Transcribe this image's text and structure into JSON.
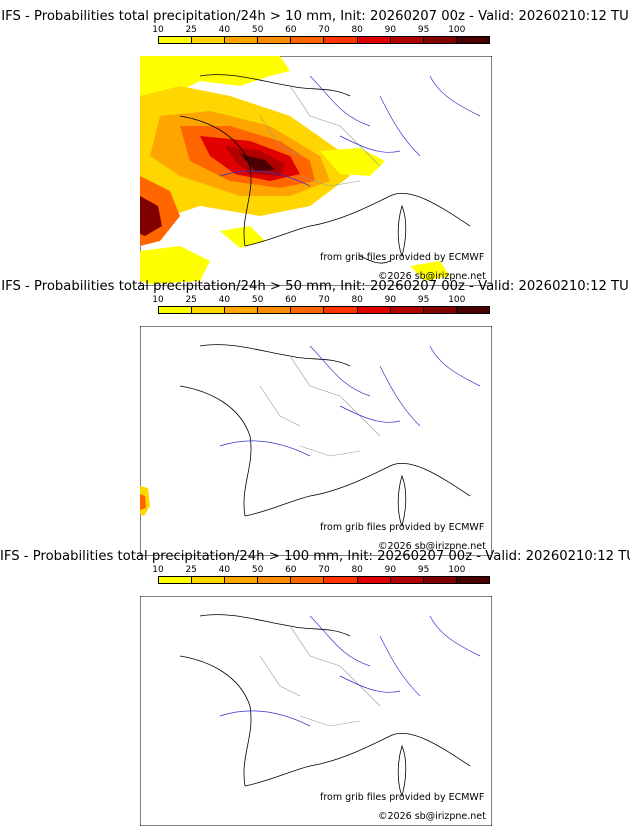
{
  "colorbar": {
    "ticks": [
      "10",
      "25",
      "40",
      "50",
      "60",
      "70",
      "80",
      "90",
      "95",
      "100"
    ],
    "colors": [
      "#ffff00",
      "#ffd700",
      "#ffa500",
      "#ff8c00",
      "#ff6600",
      "#ff3300",
      "#e00000",
      "#b00000",
      "#800000",
      "#4a0000"
    ]
  },
  "panels": [
    {
      "title": "IFS - Probabilities total precipitation/24h > 10 mm, Init: 20260207 00z - Valid: 20260210:12 TU"
    },
    {
      "title": "IFS - Probabilities total precipitation/24h > 50 mm, Init: 20260207 00z - Valid: 20260210:12 TU"
    },
    {
      "title": "IFS - Probabilities total precipitation/24h > 100 mm, Init: 20260207 00z - Valid: 20260210:12 TU"
    }
  ],
  "credits": {
    "source": "from grib files provided by ECMWF",
    "copyright": "©2026 sb@irizpne.net"
  }
}
